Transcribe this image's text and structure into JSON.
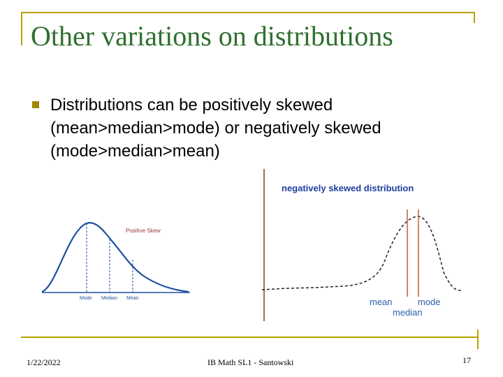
{
  "slide": {
    "title": "Other variations on distributions",
    "bullet_lines": [
      "Distributions can be positively skewed",
      "(mean>median>mode) or negatively skewed",
      "(mode>median>mean)"
    ]
  },
  "left_figure": {
    "label": "Positive Skew",
    "axis_labels": [
      "Mode",
      "Median",
      "Mean"
    ],
    "colors": {
      "curve": "#1f4f9f",
      "label": "#9a3b3b"
    }
  },
  "right_figure": {
    "title": "negatively skewed distribution",
    "labels": {
      "mean": "mean",
      "mode": "mode",
      "median": "median"
    },
    "colors": {
      "title": "#1f3f9f",
      "labels": "#2a5fb0",
      "axis": "#8b3a1a"
    }
  },
  "footer": {
    "date": "1/22/2022",
    "center": "IB Math SL1 - Santowski",
    "page": "17"
  },
  "theme": {
    "title_color": "#2f6f2f",
    "accent": "#b8a300"
  }
}
